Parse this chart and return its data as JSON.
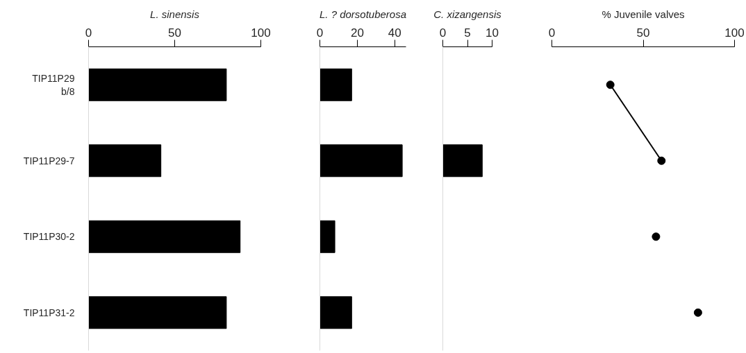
{
  "chart_data": [
    {
      "type": "bar",
      "orientation": "horizontal",
      "title": "L. sinensis",
      "categories": [
        "TIP11P29 b/8",
        "TIP11P29-7",
        "TIP11P30-2",
        "TIP11P31-2"
      ],
      "values": [
        80,
        42,
        88,
        80
      ],
      "color": "#000000",
      "xlim": [
        0,
        100
      ],
      "xticks": [
        0,
        50,
        100
      ],
      "grid": false
    },
    {
      "type": "bar",
      "orientation": "horizontal",
      "title": "L. ? dorsotuberosa",
      "categories": [
        null,
        null,
        null,
        null
      ],
      "values": [
        17,
        44,
        8,
        17
      ],
      "color": "#000000",
      "xlim": [
        0,
        46
      ],
      "xticks": [
        0,
        20,
        40
      ],
      "tick_labels": "x",
      "grid": false
    },
    {
      "type": "bar",
      "orientation": "horizontal",
      "title": "C. xizangensis",
      "categories": [
        null,
        null,
        null,
        null
      ],
      "values": [
        null,
        8,
        null,
        null
      ],
      "color": "#000000",
      "xlim": [
        0,
        10
      ],
      "xticks": [
        0,
        5,
        10
      ],
      "tick_labels": "x",
      "grid": false
    },
    {
      "type": "scatter",
      "orientation": "horizontal",
      "title": "% Juvenile valves",
      "categories": [
        null,
        null,
        null,
        null
      ],
      "xlim": [
        0,
        100
      ],
      "xticks": [
        0,
        50,
        100
      ],
      "tick_labels": "x",
      "grid": false,
      "series": [
        {
          "type": "line",
          "color": "#000000",
          "values": [
            32,
            60,
            null,
            null
          ],
          "marker": "none"
        },
        {
          "type": "scatter",
          "color": "#000000",
          "values": [
            32,
            60,
            57,
            80
          ],
          "marker": "circle"
        }
      ]
    }
  ]
}
